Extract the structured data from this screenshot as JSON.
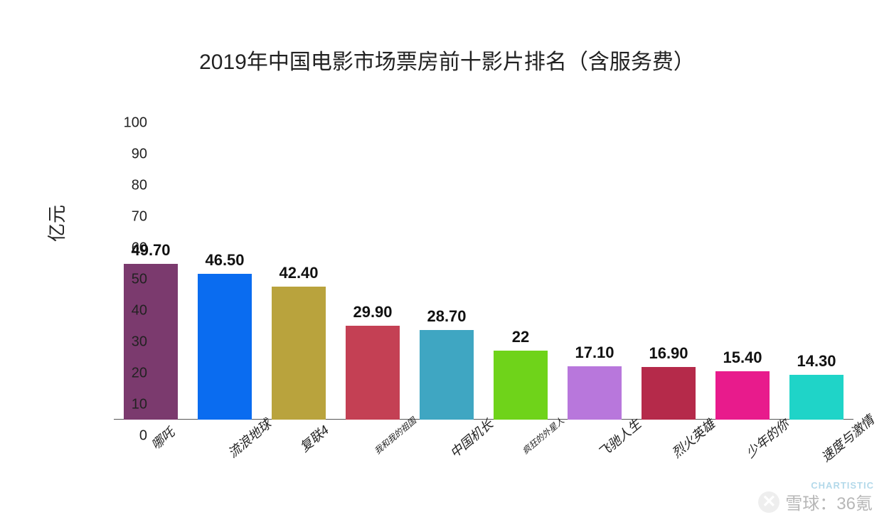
{
  "chart": {
    "type": "bar",
    "title": "2019年中国电影市场票房前十影片排名（含服务费）",
    "title_fontsize": 30,
    "ylabel": "亿元",
    "ylabel_fontsize": 26,
    "ylim": [
      0,
      100
    ],
    "ytick_step": 10,
    "ytick_fontsize": 20,
    "xtick_fontsize": 18,
    "xtick_fontsize_small": 12,
    "bar_label_fontsize": 22,
    "background_color": "#ffffff",
    "axis_color": "#555555",
    "text_color": "#222222",
    "bar_width_ratio": 0.74,
    "categories": [
      "哪吒",
      "流浪地球",
      "复联4",
      "我和我的祖国",
      "中国机长",
      "疯狂的外星人",
      "飞驰人生",
      "烈火英雄",
      "少年的你",
      "速度与激情"
    ],
    "values": [
      49.7,
      46.5,
      42.4,
      29.9,
      28.7,
      22,
      17.1,
      16.9,
      15.4,
      14.3
    ],
    "value_labels": [
      "49.70",
      "46.50",
      "42.40",
      "29.90",
      "28.70",
      "22",
      "17.10",
      "16.90",
      "15.40",
      "14.30"
    ],
    "bar_colors": [
      "#7b3a6e",
      "#0a6cf0",
      "#b9a33d",
      "#c44054",
      "#3fa6c2",
      "#6fd31a",
      "#b877dc",
      "#b52a4a",
      "#e81b8c",
      "#1fd4c8"
    ],
    "small_label_indices": [
      3,
      5
    ]
  },
  "footer": {
    "watermark_text": "雪球：36氪",
    "watermark_fontsize": 24,
    "chartistic_text": "CHARTISTIC",
    "chartistic_fontsize": 13,
    "watermark_icon": "✕"
  }
}
